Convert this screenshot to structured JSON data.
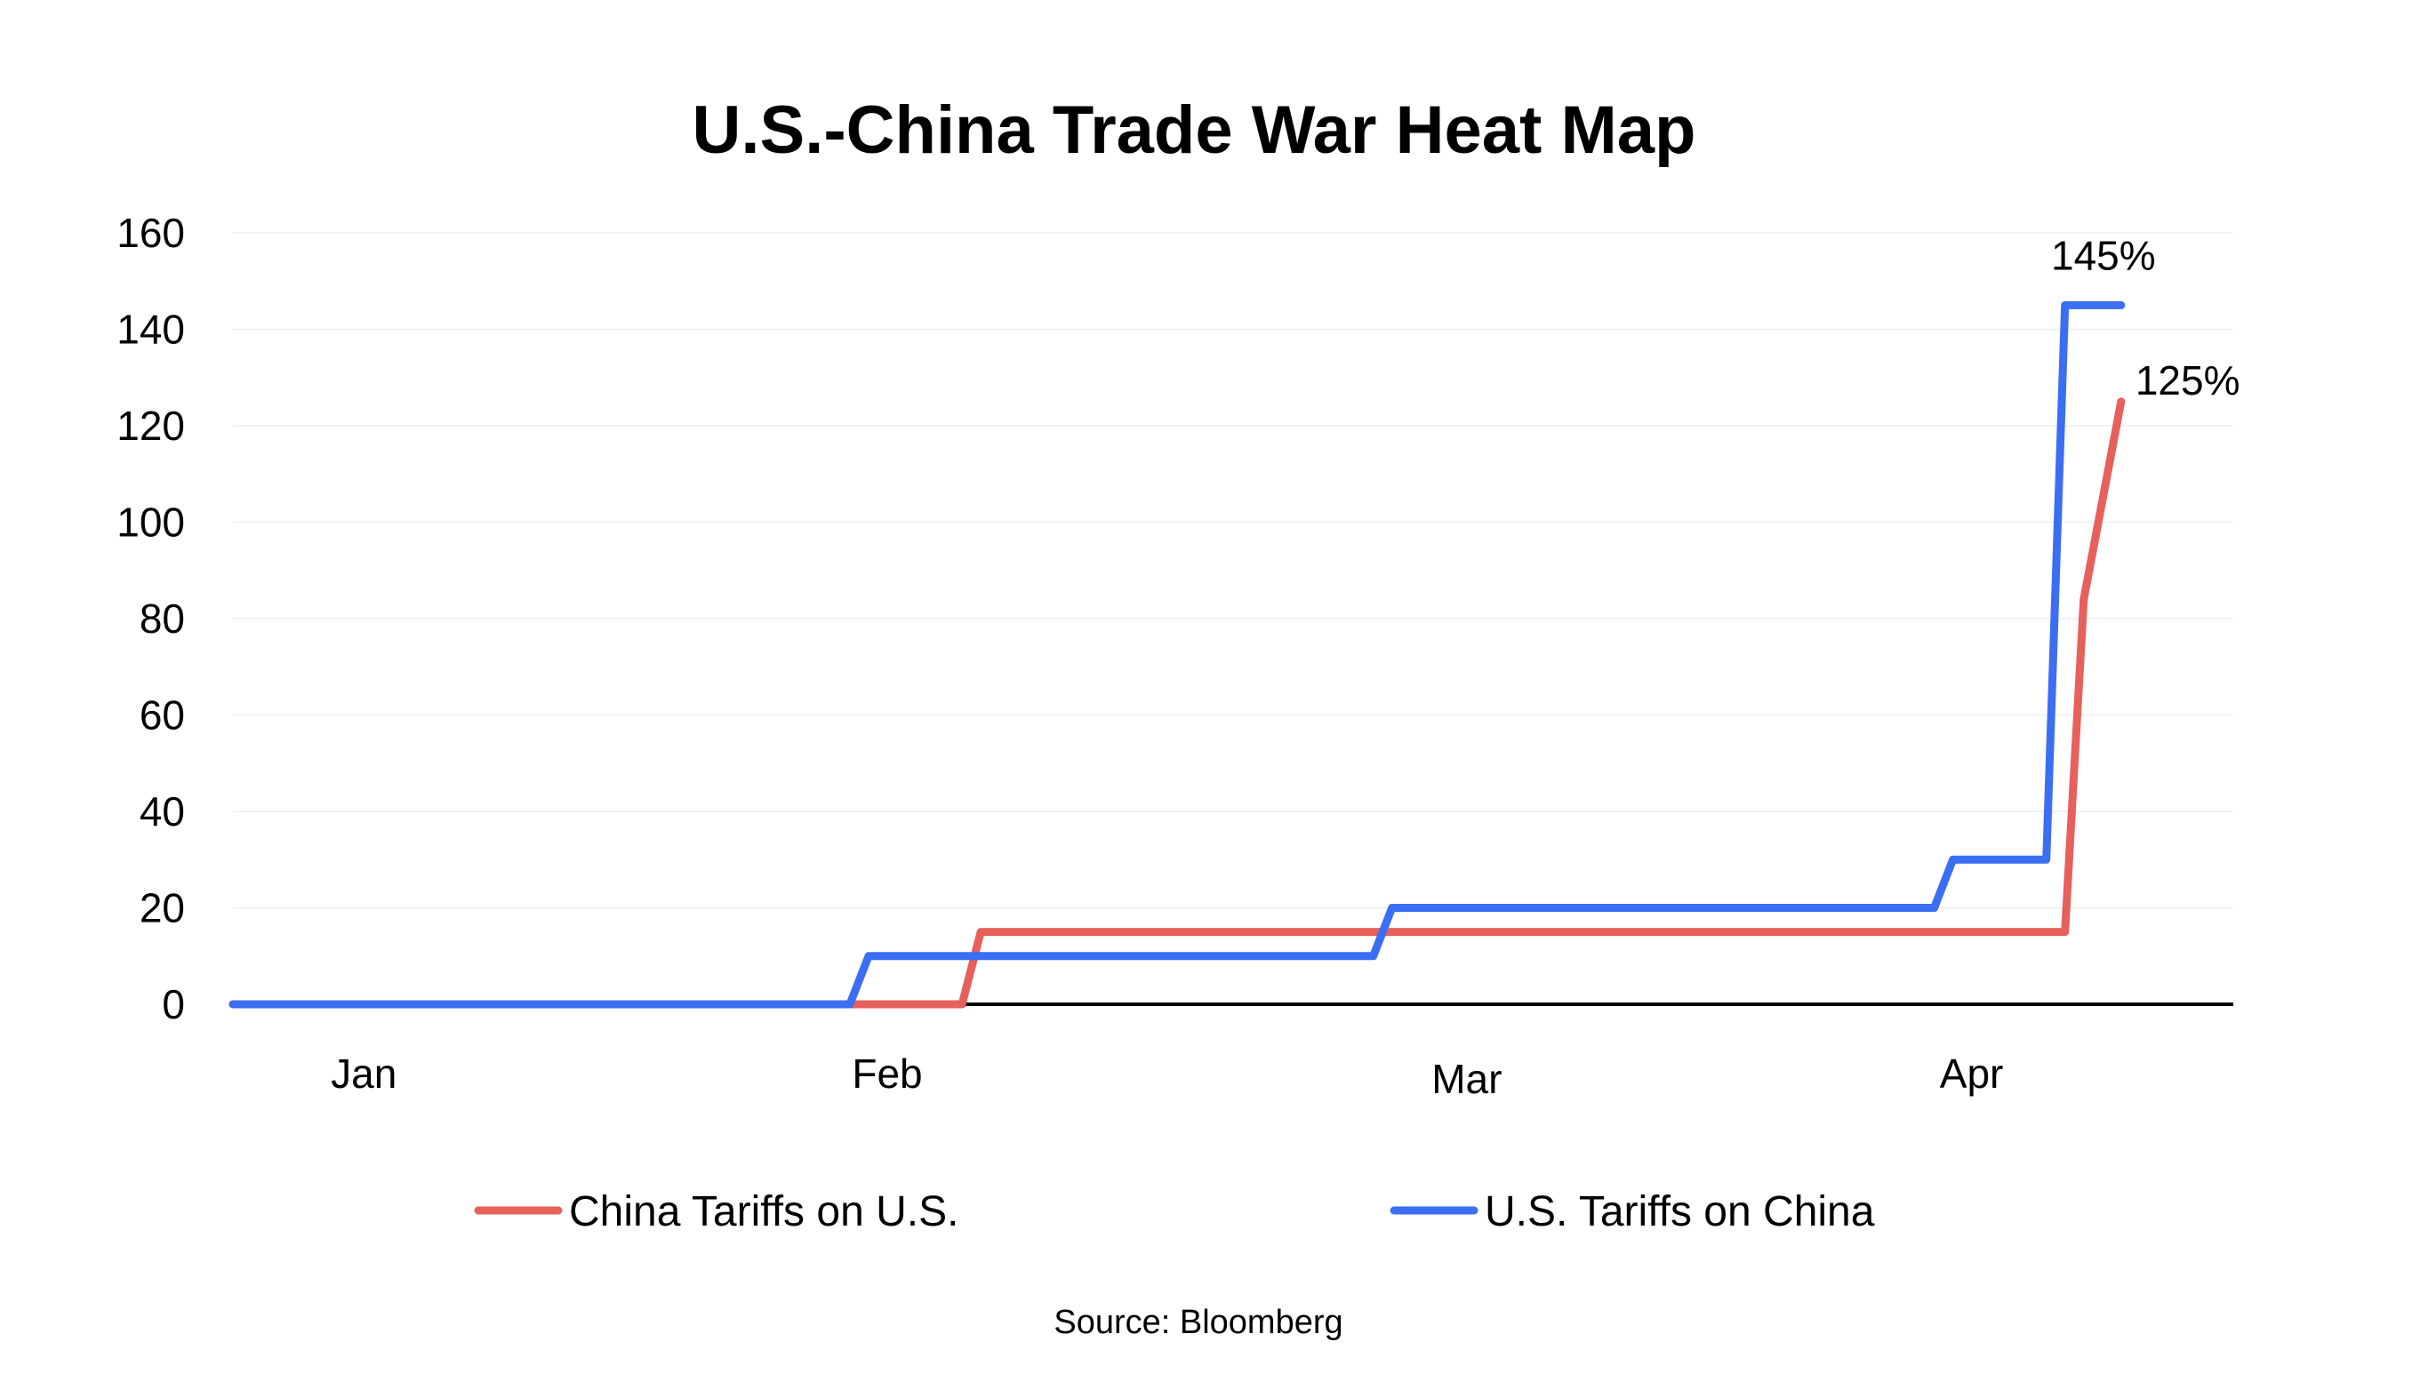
{
  "chart_data": {
    "type": "line",
    "title": "U.S.-China Trade War Heat Map",
    "xlabel": "",
    "ylabel": "",
    "ylim": [
      0,
      160
    ],
    "yticks": [
      0,
      20,
      40,
      60,
      80,
      100,
      120,
      140,
      160
    ],
    "x_range": [
      "2025-01-01",
      "2025-04-18"
    ],
    "month_labels": [
      {
        "label": "Jan",
        "date": "2025-01-08"
      },
      {
        "label": "Feb",
        "date": "2025-02-05"
      },
      {
        "label": "Mar",
        "date": "2025-03-08"
      },
      {
        "label": "Apr",
        "date": "2025-04-04"
      }
    ],
    "grid": true,
    "legend_position": "bottom",
    "series": [
      {
        "name": "China Tariffs on U.S.",
        "color": "#e8605a",
        "points": [
          [
            "2025-01-01",
            0
          ],
          [
            "2025-02-09",
            0
          ],
          [
            "2025-02-10",
            15
          ],
          [
            "2025-04-09",
            15
          ],
          [
            "2025-04-10",
            84
          ],
          [
            "2025-04-12",
            125
          ]
        ],
        "end_label": "125%"
      },
      {
        "name": "U.S. Tariffs on China",
        "color": "#3b6ef2",
        "points": [
          [
            "2025-01-01",
            0
          ],
          [
            "2025-02-03",
            0
          ],
          [
            "2025-02-04",
            10
          ],
          [
            "2025-03-03",
            10
          ],
          [
            "2025-03-04",
            20
          ],
          [
            "2025-04-02",
            20
          ],
          [
            "2025-04-03",
            30
          ],
          [
            "2025-04-08",
            30
          ],
          [
            "2025-04-09",
            145
          ],
          [
            "2025-04-12",
            145
          ]
        ],
        "end_label": "145%"
      }
    ],
    "source": "Source: Bloomberg"
  }
}
